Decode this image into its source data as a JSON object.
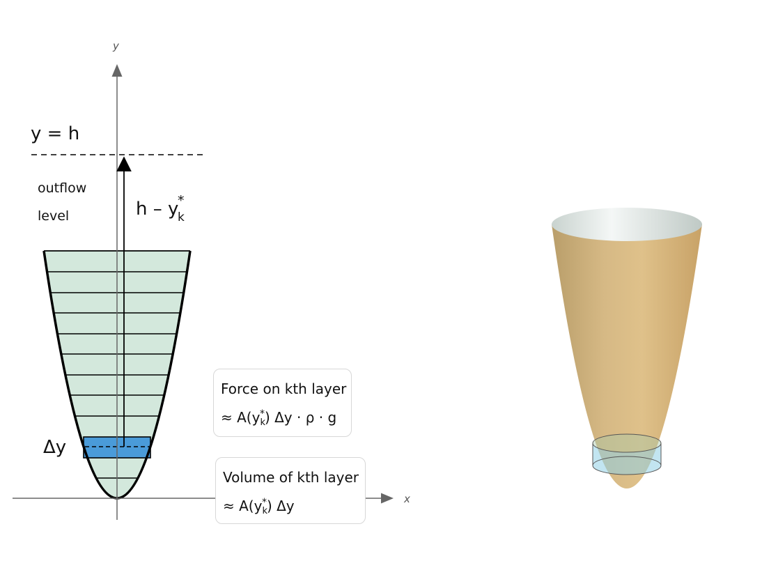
{
  "diagram": {
    "axis_x_label": "x",
    "axis_y_label": "y",
    "level_label": "y = h",
    "outflow_label_1": "outflow",
    "outflow_label_2": "level",
    "height_label_main": "h – y",
    "height_label_sub": "k",
    "height_label_sup": "*",
    "delta_label": "Δy",
    "layer_count": 12,
    "highlighted_layer_index": 10,
    "colors": {
      "fluid": "#d3e8dc",
      "layer_highlight": "#4a9bd9",
      "outline": "#000000",
      "axis": "#666666"
    }
  },
  "force_box": {
    "title": "Force on kth layer",
    "formula_prefix": "≈ A(y",
    "formula_sub": "k",
    "formula_sup": "*",
    "formula_suffix": ") Δy · ρ · g"
  },
  "volume_box": {
    "title": "Volume of kth layer",
    "formula_prefix": "≈ A(y",
    "formula_sub": "k",
    "formula_sup": "*",
    "formula_suffix": ") Δy"
  },
  "view3d": {
    "colors": {
      "surface": "#d2b27a",
      "rim": "#dfe6e4",
      "slice": "#8fd0e6"
    }
  }
}
